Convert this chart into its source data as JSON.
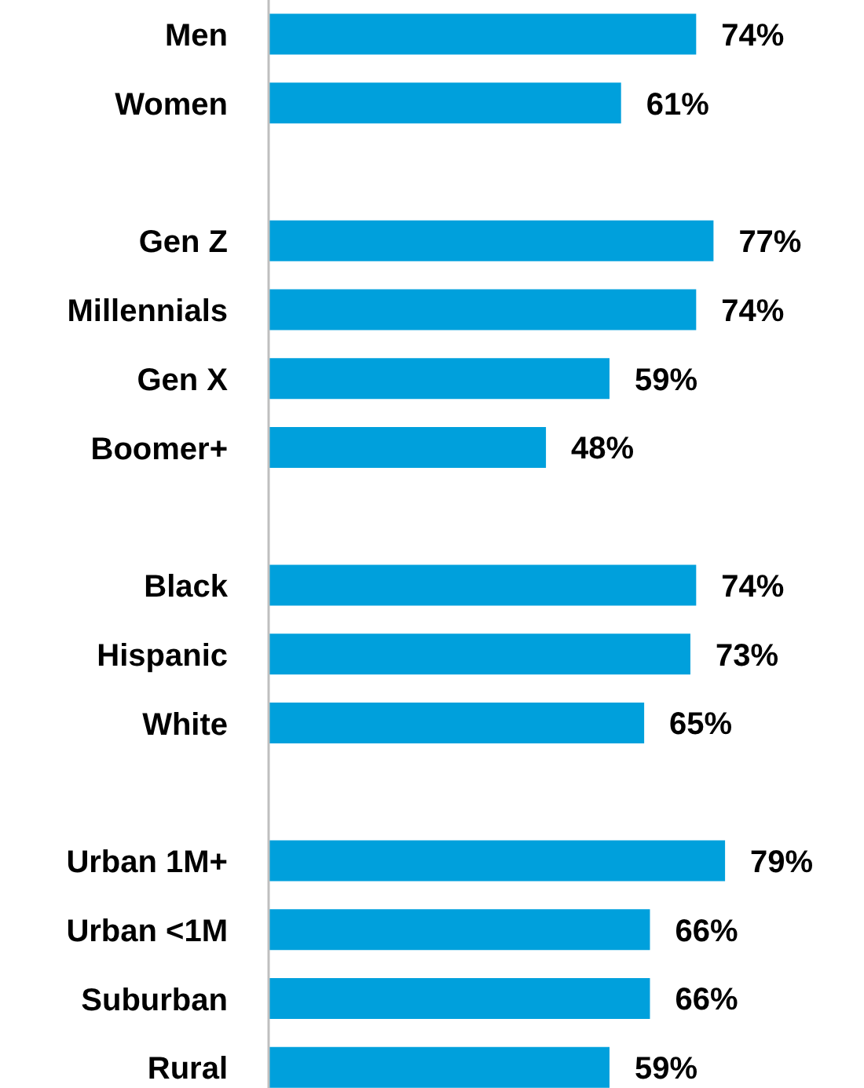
{
  "chart_data": {
    "type": "bar",
    "orientation": "horizontal",
    "categories": [
      "Men",
      "Women",
      null,
      "Gen Z",
      "Millennials",
      "Gen X",
      "Boomer+",
      null,
      "Black",
      "Hispanic",
      "White",
      null,
      "Urban 1M+",
      "Urban <1M",
      "Suburban",
      "Rural"
    ],
    "series": [
      {
        "color": "#00a0dc",
        "values": [
          74,
          61,
          null,
          77,
          74,
          59,
          48,
          null,
          74,
          73,
          65,
          null,
          79,
          66,
          66,
          59
        ],
        "value_labels": [
          "74%",
          "61%",
          null,
          "77%",
          "74%",
          "59%",
          "48%",
          null,
          "74%",
          "73%",
          "65%",
          null,
          "79%",
          "66%",
          "66%",
          "59%"
        ]
      }
    ],
    "tick_labels": "y"
  }
}
